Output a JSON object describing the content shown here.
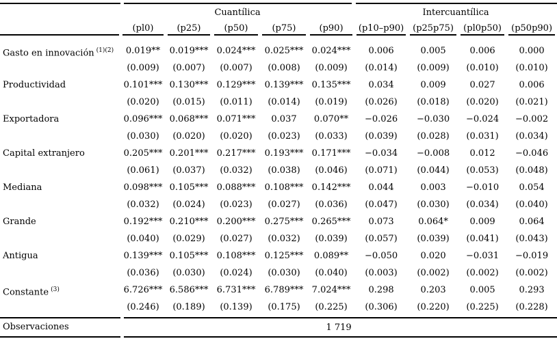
{
  "table": {
    "group_headers": [
      {
        "label": "Cuantílica",
        "span": 5
      },
      {
        "label": "Intercuantílica",
        "span": 4
      }
    ],
    "column_headers": [
      "(pl0)",
      "(p25)",
      "(p50)",
      "(p75)",
      "(p90)",
      "(p10–p90)",
      "(p25p75)",
      "(pl0p50)",
      "(p50p90)"
    ],
    "rows": [
      {
        "label": "Gasto en innovación",
        "label_superscript": "(1)(2)",
        "coefficients": [
          "0.019**",
          "0.019***",
          "0.024***",
          "0.025***",
          "0.024***",
          "0.006",
          "0.005",
          "0.006",
          "0.000"
        ],
        "std_errors": [
          "(0.009)",
          "(0.007)",
          "(0.007)",
          "(0.008)",
          "(0.009)",
          "(0.014)",
          "(0.009)",
          "(0.010)",
          "(0.010)"
        ]
      },
      {
        "label": "Productividad",
        "coefficients": [
          "0.101***",
          "0.130***",
          "0.129***",
          "0.139***",
          "0.135***",
          "0.034",
          "0.009",
          "0.027",
          "0.006"
        ],
        "std_errors": [
          "(0.020)",
          "(0.015)",
          "(0.011)",
          "(0.014)",
          "(0.019)",
          "(0.026)",
          "(0.018)",
          "(0.020)",
          "(0.021)"
        ]
      },
      {
        "label": "Exportadora",
        "coefficients": [
          "0.096***",
          "0.068***",
          "0.071***",
          "0.037",
          "0.070**",
          "−0.026",
          "−0.030",
          "−0.024",
          "−0.002"
        ],
        "std_errors": [
          "(0.030)",
          "(0.020)",
          "(0.020)",
          "(0.023)",
          "(0.033)",
          "(0.039)",
          "(0.028)",
          "(0.031)",
          "(0.034)"
        ]
      },
      {
        "label": "Capital extranjero",
        "coefficients": [
          "0.205***",
          "0.201***",
          "0.217***",
          "0.193***",
          "0.171***",
          "−0.034",
          "−0.008",
          "0.012",
          "−0.046"
        ],
        "std_errors": [
          "(0.061)",
          "(0.037)",
          "(0.032)",
          "(0.038)",
          "(0.046)",
          "(0.071)",
          "(0.044)",
          "(0.053)",
          "(0.048)"
        ]
      },
      {
        "label": "Mediana",
        "coefficients": [
          "0.098***",
          "0.105***",
          "0.088***",
          "0.108***",
          "0.142***",
          "0.044",
          "0.003",
          "−0.010",
          "0.054"
        ],
        "std_errors": [
          "(0.032)",
          "(0.024)",
          "(0.023)",
          "(0.027)",
          "(0.036)",
          "(0.047)",
          "(0.030)",
          "(0.034)",
          "(0.040)"
        ]
      },
      {
        "label": "Grande",
        "coefficients": [
          "0.192***",
          "0.210***",
          "0.200***",
          "0.275***",
          "0.265***",
          "0.073",
          "0.064*",
          "0.009",
          "0.064"
        ],
        "std_errors": [
          "(0.040)",
          "(0.029)",
          "(0.027)",
          "(0.032)",
          "(0.039)",
          "(0.057)",
          "(0.039)",
          "(0.041)",
          "(0.043)"
        ]
      },
      {
        "label": "Antigua",
        "coefficients": [
          "0.139***",
          "0.105***",
          "0.108***",
          "0.125***",
          "0.089**",
          "−0.050",
          "0.020",
          "−0.031",
          "−0.019"
        ],
        "std_errors": [
          "(0.036)",
          "(0.030)",
          "(0.024)",
          "(0.030)",
          "(0.040)",
          "(0.003)",
          "(0.002)",
          "(0.002)",
          "(0.002)"
        ]
      },
      {
        "label": "Constante",
        "label_superscript": "(3)",
        "coefficients": [
          "6.726***",
          "6.586***",
          "6.731***",
          "6.789***",
          "7.024***",
          "0.298",
          "0.203",
          "0.005",
          "0.293"
        ],
        "std_errors": [
          "(0.246)",
          "(0.189)",
          "(0.139)",
          "(0.175)",
          "(0.225)",
          "(0.306)",
          "(0.220)",
          "(0.225)",
          "(0.228)"
        ]
      }
    ],
    "footer": {
      "label": "Observaciones",
      "value": "1 719"
    }
  }
}
